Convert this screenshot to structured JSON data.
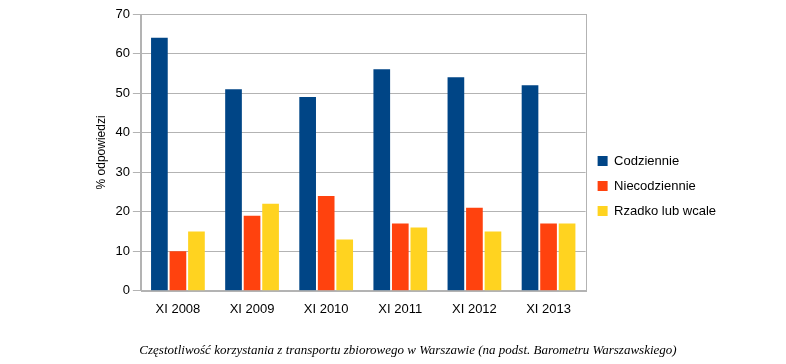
{
  "chart_data": {
    "type": "bar",
    "title": "Częstotliwość korzystania z transportu zbiorowego w Warszawie (na podst. Barometru Warszawskiego)",
    "ylabel": "% odpowiedzi",
    "categories": [
      "XI 2008",
      "XI 2009",
      "XI 2010",
      "XI 2011",
      "XI 2012",
      "XI 2013"
    ],
    "series": [
      {
        "name": "Codziennie",
        "color": "#004586",
        "values": [
          64,
          51,
          49,
          56,
          54,
          52
        ]
      },
      {
        "name": "Niecodziennie",
        "color": "#ff420e",
        "values": [
          10,
          19,
          24,
          17,
          21,
          17
        ]
      },
      {
        "name": "Rzadko lub wcale",
        "color": "#ffd320",
        "values": [
          15,
          22,
          13,
          16,
          15,
          17
        ]
      }
    ],
    "ylim": [
      0,
      70
    ],
    "yticks": [
      0,
      10,
      20,
      30,
      40,
      50,
      60,
      70
    ],
    "grid": true,
    "legend": "right"
  }
}
